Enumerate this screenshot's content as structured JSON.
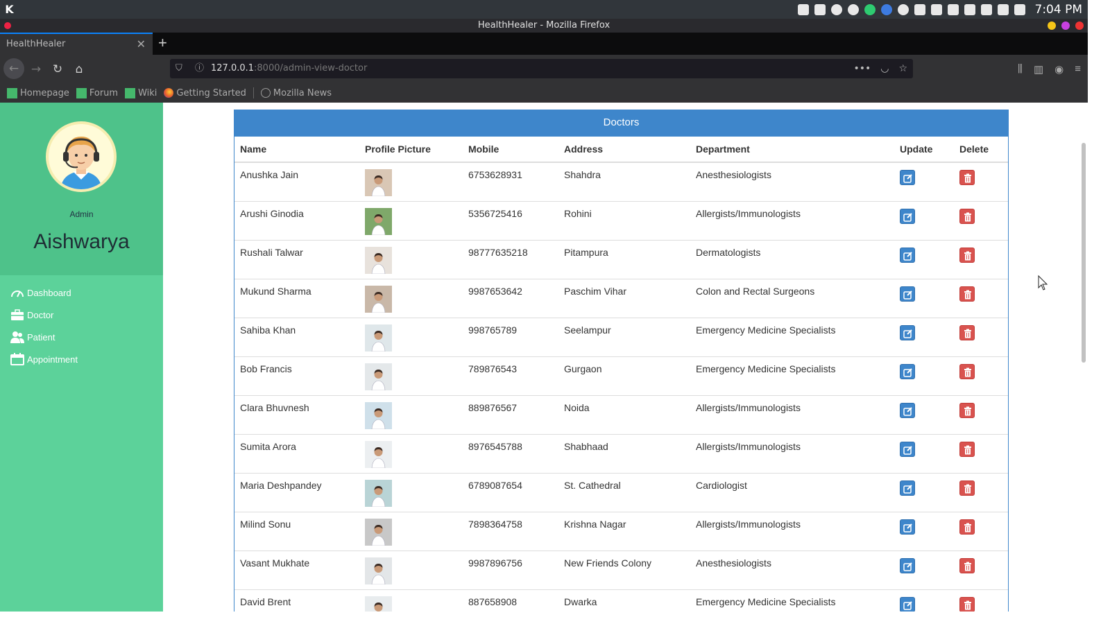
{
  "os": {
    "launcher_icon": "kde-logo-icon",
    "clock": "7:04 PM",
    "tray_icons": [
      "clipboard-icon",
      "notes-icon",
      "network-icon",
      "vpn-icon",
      "status-icon",
      "chrome-icon",
      "whatsapp-icon",
      "shield-icon",
      "display-icon",
      "volume-icon",
      "battery-icon",
      "microphone-icon",
      "wifi-icon",
      "tray-expand-icon"
    ]
  },
  "window": {
    "title": "HealthHealer - Mozilla Firefox"
  },
  "browser": {
    "tab_title": "HealthHealer",
    "url_host": "127.0.0.1",
    "url_rest": ":8000/admin-view-doctor",
    "bookmarks": [
      {
        "label": "Homepage",
        "icon": "site-icon"
      },
      {
        "label": "Forum",
        "icon": "site-icon"
      },
      {
        "label": "Wiki",
        "icon": "site-icon"
      },
      {
        "label": "Getting Started",
        "icon": "firefox-icon"
      },
      {
        "label": "Mozilla News",
        "icon": "globe-icon"
      }
    ]
  },
  "sidebar": {
    "role": "Admin",
    "name": "Aishwarya",
    "menu": [
      {
        "label": "Dashboard",
        "icon": "speedometer-icon"
      },
      {
        "label": "Doctor",
        "icon": "briefcase-icon"
      },
      {
        "label": "Patient",
        "icon": "users-icon"
      },
      {
        "label": "Appointment",
        "icon": "calendar-icon"
      }
    ]
  },
  "panel": {
    "title": "Doctors",
    "columns": [
      "Name",
      "Profile Picture",
      "Mobile",
      "Address",
      "Department",
      "Update",
      "Delete"
    ],
    "rows": [
      {
        "name": "Anushka Jain",
        "mobile": "6753628931",
        "address": "Shahdra",
        "department": "Anesthesiologists"
      },
      {
        "name": "Arushi Ginodia",
        "mobile": "5356725416",
        "address": "Rohini",
        "department": "Allergists/Immunologists"
      },
      {
        "name": "Rushali Talwar",
        "mobile": "98777635218",
        "address": "Pitampura",
        "department": "Dermatologists"
      },
      {
        "name": "Mukund Sharma",
        "mobile": "9987653642",
        "address": "Paschim Vihar",
        "department": "Colon and Rectal Surgeons"
      },
      {
        "name": "Sahiba Khan",
        "mobile": "998765789",
        "address": "Seelampur",
        "department": "Emergency Medicine Specialists"
      },
      {
        "name": "Bob Francis",
        "mobile": "789876543",
        "address": "Gurgaon",
        "department": "Emergency Medicine Specialists"
      },
      {
        "name": "Clara Bhuvnesh",
        "mobile": "889876567",
        "address": "Noida",
        "department": "Allergists/Immunologists"
      },
      {
        "name": "Sumita Arora",
        "mobile": "8976545788",
        "address": "Shabhaad",
        "department": "Allergists/Immunologists"
      },
      {
        "name": "Maria Deshpandey",
        "mobile": "6789087654",
        "address": "St. Cathedral",
        "department": "Cardiologist"
      },
      {
        "name": "Milind Sonu",
        "mobile": "7898364758",
        "address": "Krishna Nagar",
        "department": "Allergists/Immunologists"
      },
      {
        "name": "Vasant Mukhate",
        "mobile": "9987896756",
        "address": "New Friends Colony",
        "department": "Anesthesiologists"
      },
      {
        "name": "David Brent",
        "mobile": "887658908",
        "address": "Dwarka",
        "department": "Emergency Medicine Specialists"
      }
    ]
  },
  "colors": {
    "sidebar": "#5cd29a",
    "sidebar_profile": "#4ec28a",
    "panel_header": "#3e86cb",
    "update_button": "#3e86cb",
    "delete_button": "#d9534f"
  }
}
